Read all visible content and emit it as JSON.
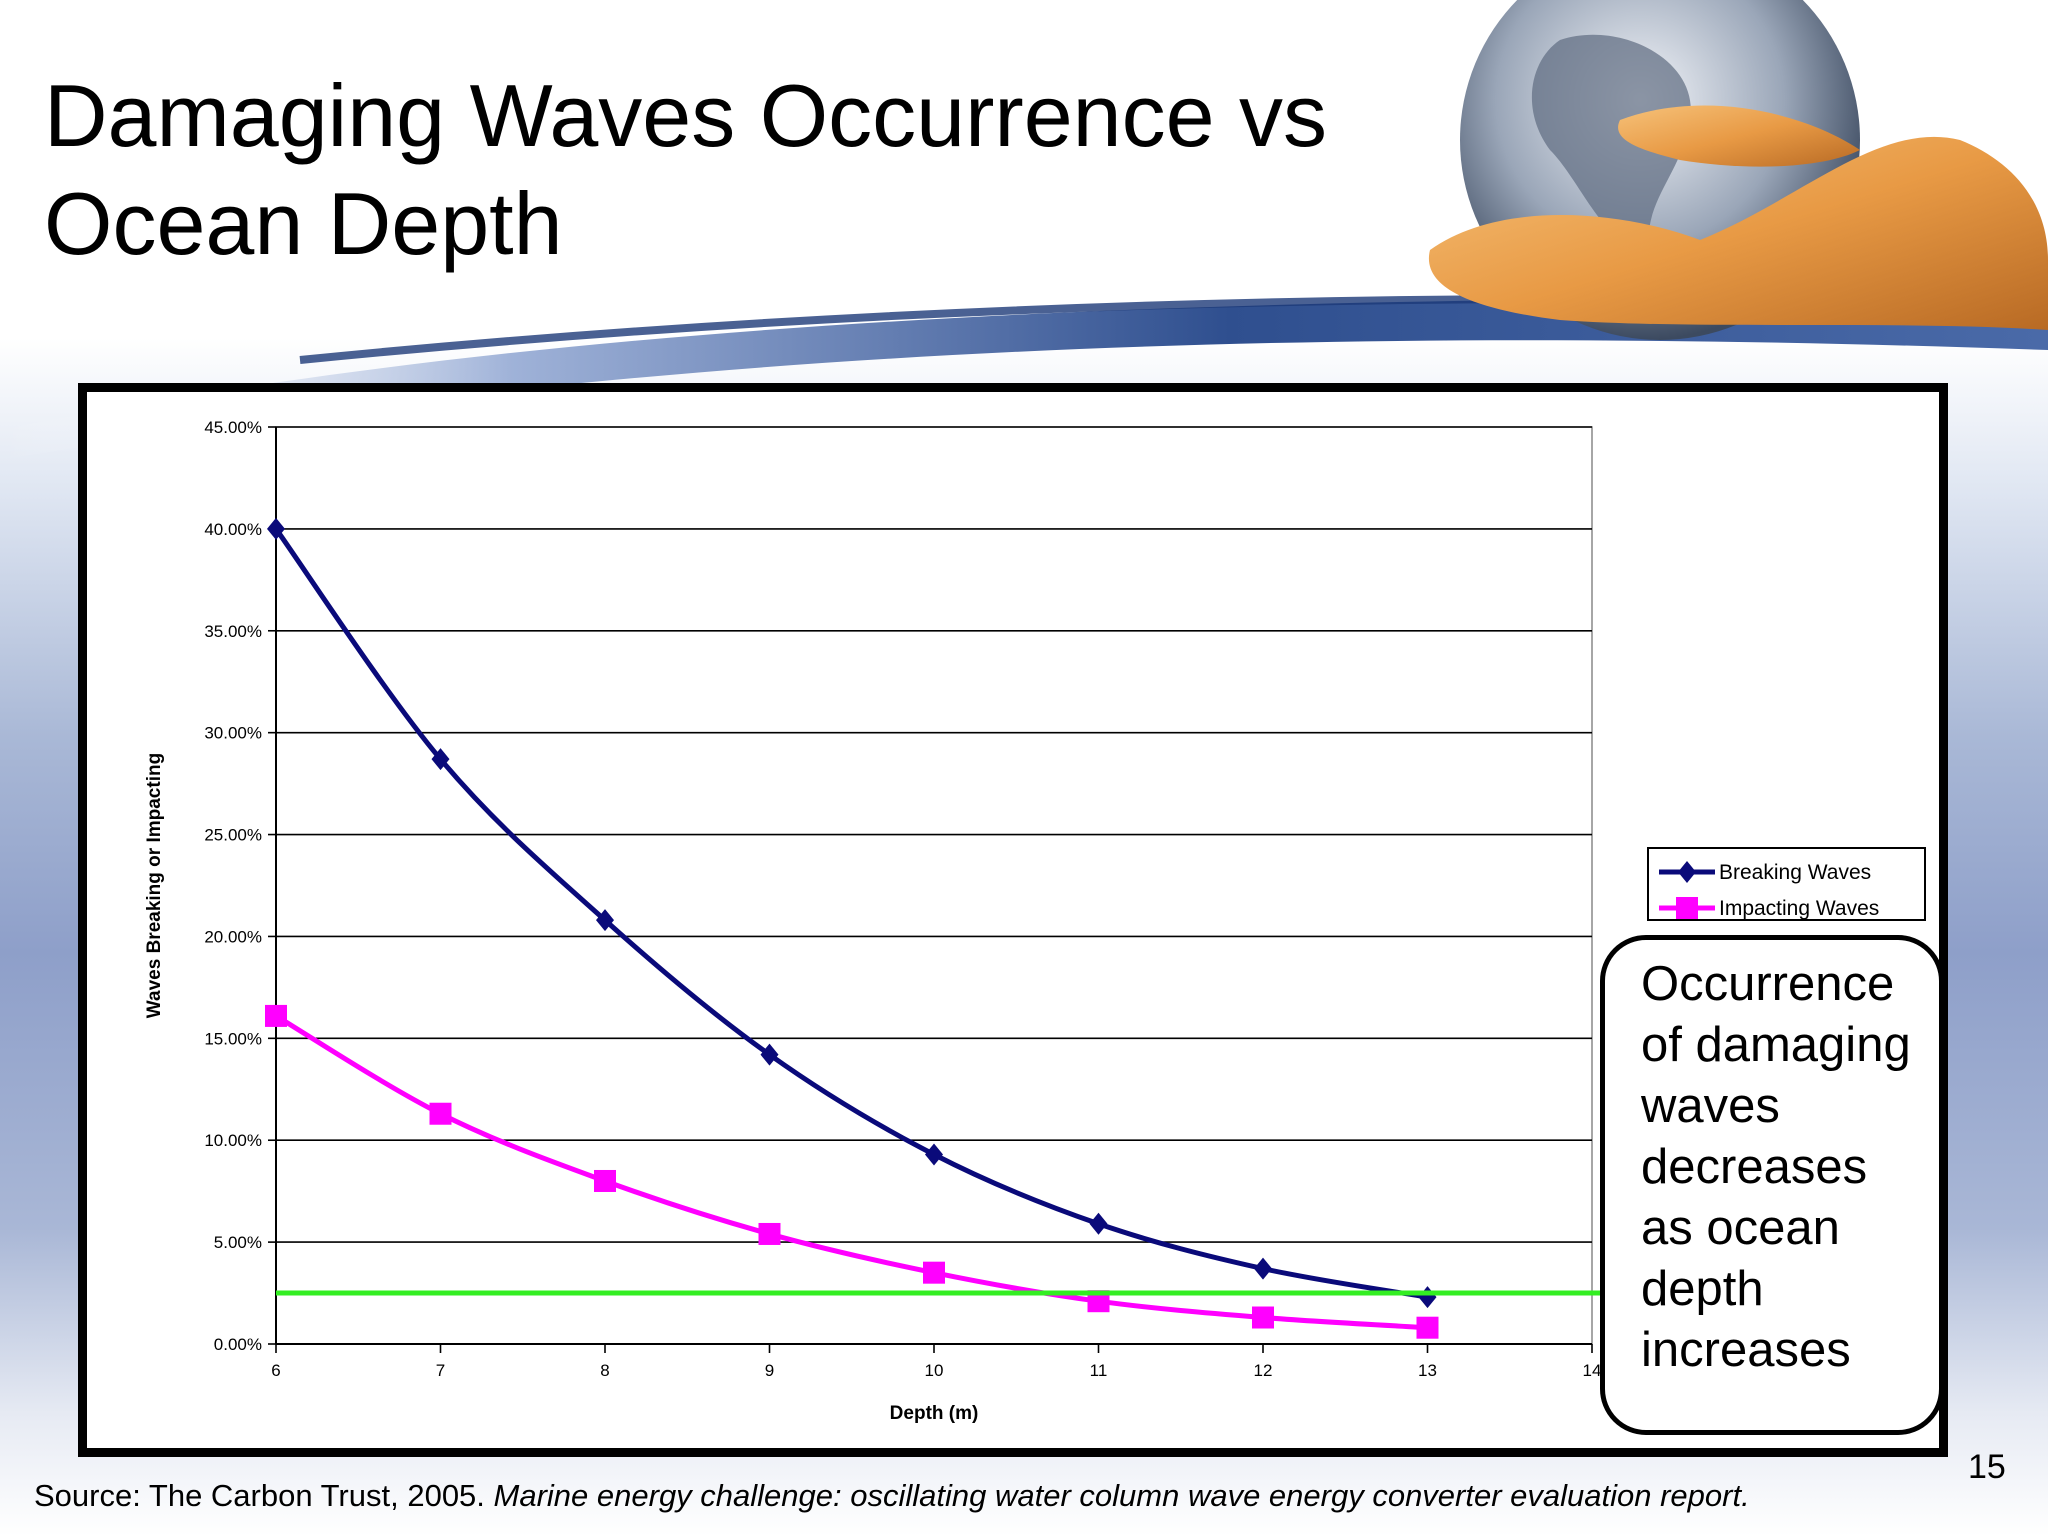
{
  "slide": {
    "title": "Damaging Waves Occurrence vs Ocean Depth",
    "callout": "Occurrence of damaging waves decreases as ocean depth increases",
    "page_number": "15",
    "source_prefix": "Source: The Carbon Trust, 2005. ",
    "source_reference": "Marine energy challenge: oscillating water column wave energy converter evaluation report."
  },
  "chart_data": {
    "type": "line",
    "title": "",
    "xlabel": "Depth (m)",
    "ylabel": "Waves Breaking or Impacting",
    "x_ticks": [
      "6",
      "7",
      "8",
      "9",
      "10",
      "11",
      "12",
      "13",
      "14"
    ],
    "y_ticks": [
      "0.00%",
      "5.00%",
      "10.00%",
      "15.00%",
      "20.00%",
      "25.00%",
      "30.00%",
      "35.00%",
      "40.00%",
      "45.00%"
    ],
    "xlim": [
      6,
      14
    ],
    "ylim": [
      0,
      45
    ],
    "grid": "horizontal",
    "legend_position": "right",
    "x": [
      6,
      7,
      8,
      9,
      10,
      11,
      12,
      13
    ],
    "series": [
      {
        "name": "Breaking Waves",
        "color": "#0a0a7a",
        "marker": "diamond",
        "values": [
          40.0,
          28.7,
          20.8,
          14.2,
          9.3,
          5.9,
          3.7,
          2.3
        ]
      },
      {
        "name": "Impacting Waves",
        "color": "#ff00ff",
        "marker": "square",
        "values": [
          16.1,
          11.3,
          8.0,
          5.4,
          3.5,
          2.1,
          1.3,
          0.8
        ]
      }
    ],
    "reference_line": {
      "y": 2.5,
      "color": "#33ee22"
    }
  },
  "colors": {
    "breaking": "#0a0a7a",
    "impacting": "#ff00ff",
    "threshold": "#33ee22"
  }
}
